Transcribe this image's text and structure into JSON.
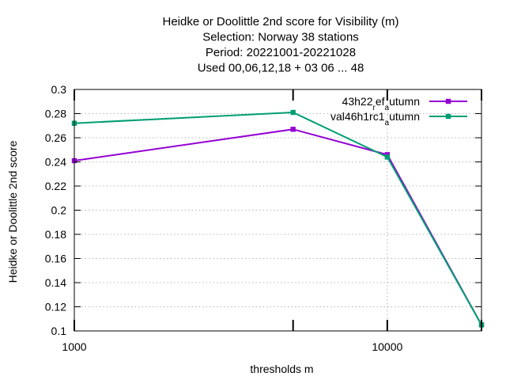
{
  "chart_data": {
    "type": "line",
    "title_lines": [
      "Heidke or Doolittle 2nd score  for Visibility (m)",
      "Selection: Norway     38 stations",
      "Period: 20221001-20221028",
      "Used  00,06,12,18  + 03 06 ... 48"
    ],
    "xlabel": "thresholds m",
    "ylabel": "Heidke or Doolittle 2nd score",
    "x_scale": "log",
    "xlim": [
      1000,
      20000
    ],
    "ylim": [
      0.1,
      0.3
    ],
    "x_ticks": [
      {
        "value": 1000,
        "label": "1000"
      },
      {
        "value": 10000,
        "label": "10000"
      }
    ],
    "x_minor_ticks": [
      5000,
      20000
    ],
    "y_ticks": [
      {
        "value": 0.1,
        "label": "0.1"
      },
      {
        "value": 0.12,
        "label": "0.12"
      },
      {
        "value": 0.14,
        "label": "0.14"
      },
      {
        "value": 0.16,
        "label": "0.16"
      },
      {
        "value": 0.18,
        "label": "0.18"
      },
      {
        "value": 0.2,
        "label": "0.2"
      },
      {
        "value": 0.22,
        "label": "0.22"
      },
      {
        "value": 0.24,
        "label": "0.24"
      },
      {
        "value": 0.26,
        "label": "0.26"
      },
      {
        "value": 0.28,
        "label": "0.28"
      },
      {
        "value": 0.3,
        "label": "0.3"
      }
    ],
    "grid": true,
    "legend_position": "top-right",
    "series": [
      {
        "name": "43h22_ref_autumn",
        "name_parts": [
          "43h22",
          "r",
          "ef",
          "a",
          "utumn"
        ],
        "color": "#9400d3",
        "x": [
          1000,
          5000,
          10000,
          20000
        ],
        "y": [
          0.241,
          0.267,
          0.246,
          0.105
        ]
      },
      {
        "name": "val46h1rc1_autumn",
        "name_parts": [
          "val46h1rc1",
          "a",
          "utumn"
        ],
        "color": "#009e73",
        "x": [
          1000,
          5000,
          10000,
          20000
        ],
        "y": [
          0.272,
          0.281,
          0.244,
          0.105
        ]
      }
    ]
  }
}
